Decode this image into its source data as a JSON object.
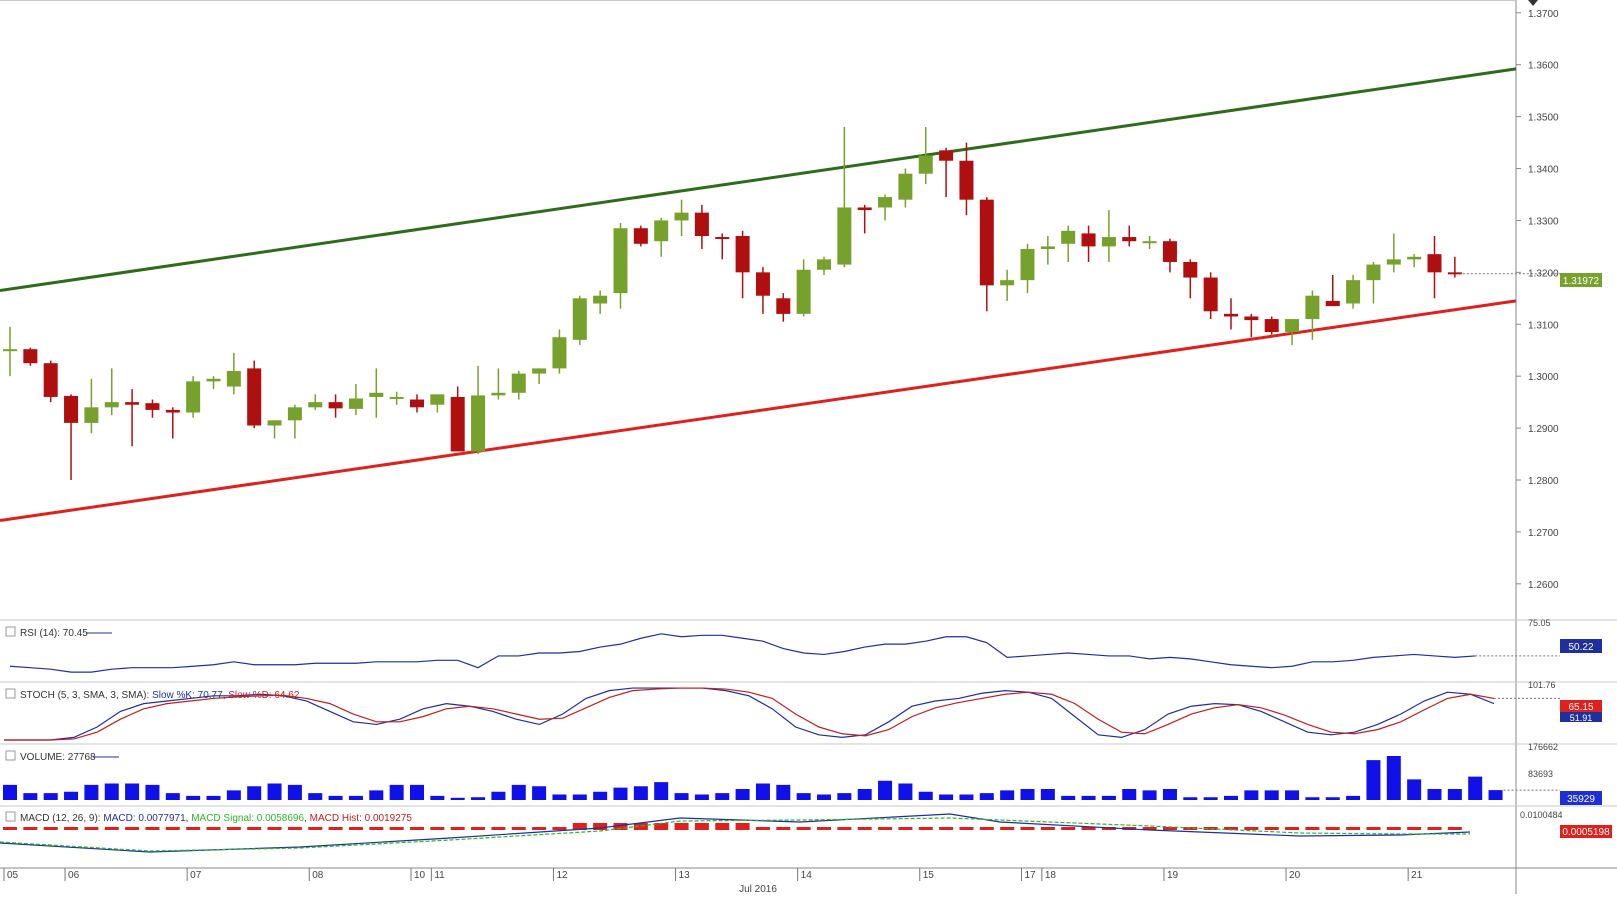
{
  "chart_data": [
    {
      "type": "candlestick",
      "panel": "price",
      "price_axis": {
        "ticks": [
          "1.3700",
          "1.3600",
          "1.3500",
          "1.3400",
          "1.3300",
          "1.3200",
          "1.3100",
          "1.3000",
          "1.2900",
          "1.2800",
          "1.2700",
          "1.2600"
        ],
        "ylim": [
          1.2565,
          1.3715
        ],
        "current_price_label": "1.31972",
        "current_price": 1.31972
      },
      "x_axis": {
        "ticks": [
          "05",
          "06",
          "07",
          "08",
          "10",
          "11",
          "12",
          "13",
          "14",
          "15",
          "17",
          "18",
          "19",
          "20",
          "21"
        ],
        "month_label": "Jul 2016"
      },
      "candles": [
        {
          "o": 1.305,
          "h": 1.3095,
          "l": 1.3,
          "c": 1.3052
        },
        {
          "o": 1.3052,
          "h": 1.3055,
          "l": 1.302,
          "c": 1.3025
        },
        {
          "o": 1.3025,
          "h": 1.303,
          "l": 1.295,
          "c": 1.296
        },
        {
          "o": 1.2962,
          "h": 1.2965,
          "l": 1.28,
          "c": 1.291
        },
        {
          "o": 1.291,
          "h": 1.2995,
          "l": 1.289,
          "c": 1.294
        },
        {
          "o": 1.294,
          "h": 1.3015,
          "l": 1.2925,
          "c": 1.295
        },
        {
          "o": 1.295,
          "h": 1.2975,
          "l": 1.2865,
          "c": 1.2945
        },
        {
          "o": 1.2948,
          "h": 1.2955,
          "l": 1.292,
          "c": 1.2935
        },
        {
          "o": 1.2935,
          "h": 1.294,
          "l": 1.288,
          "c": 1.293
        },
        {
          "o": 1.293,
          "h": 1.3,
          "l": 1.292,
          "c": 1.299
        },
        {
          "o": 1.299,
          "h": 1.3,
          "l": 1.2975,
          "c": 1.2995
        },
        {
          "o": 1.298,
          "h": 1.3045,
          "l": 1.2965,
          "c": 1.301
        },
        {
          "o": 1.3015,
          "h": 1.303,
          "l": 1.29,
          "c": 1.2905
        },
        {
          "o": 1.2905,
          "h": 1.2915,
          "l": 1.288,
          "c": 1.2915
        },
        {
          "o": 1.2915,
          "h": 1.2945,
          "l": 1.288,
          "c": 1.294
        },
        {
          "o": 1.294,
          "h": 1.2965,
          "l": 1.2935,
          "c": 1.295
        },
        {
          "o": 1.295,
          "h": 1.2965,
          "l": 1.292,
          "c": 1.2938
        },
        {
          "o": 1.2937,
          "h": 1.2985,
          "l": 1.2925,
          "c": 1.2957
        },
        {
          "o": 1.296,
          "h": 1.3015,
          "l": 1.292,
          "c": 1.2968
        },
        {
          "o": 1.296,
          "h": 1.297,
          "l": 1.2945,
          "c": 1.296
        },
        {
          "o": 1.2955,
          "h": 1.2965,
          "l": 1.293,
          "c": 1.294
        },
        {
          "o": 1.2945,
          "h": 1.2965,
          "l": 1.293,
          "c": 1.2965
        },
        {
          "o": 1.296,
          "h": 1.298,
          "l": 1.2855,
          "c": 1.2855
        },
        {
          "o": 1.2855,
          "h": 1.302,
          "l": 1.285,
          "c": 1.2963
        },
        {
          "o": 1.2963,
          "h": 1.3015,
          "l": 1.2955,
          "c": 1.2968
        },
        {
          "o": 1.2968,
          "h": 1.301,
          "l": 1.2955,
          "c": 1.3005
        },
        {
          "o": 1.3005,
          "h": 1.3015,
          "l": 1.2985,
          "c": 1.3015
        },
        {
          "o": 1.3015,
          "h": 1.309,
          "l": 1.3005,
          "c": 1.3075
        },
        {
          "o": 1.307,
          "h": 1.3155,
          "l": 1.306,
          "c": 1.315
        },
        {
          "o": 1.314,
          "h": 1.3165,
          "l": 1.312,
          "c": 1.3155
        },
        {
          "o": 1.316,
          "h": 1.3295,
          "l": 1.313,
          "c": 1.3285
        },
        {
          "o": 1.3285,
          "h": 1.329,
          "l": 1.325,
          "c": 1.3255
        },
        {
          "o": 1.326,
          "h": 1.3305,
          "l": 1.323,
          "c": 1.33
        },
        {
          "o": 1.33,
          "h": 1.334,
          "l": 1.327,
          "c": 1.3315
        },
        {
          "o": 1.3315,
          "h": 1.333,
          "l": 1.3245,
          "c": 1.327
        },
        {
          "o": 1.3268,
          "h": 1.3275,
          "l": 1.3225,
          "c": 1.3265
        },
        {
          "o": 1.327,
          "h": 1.328,
          "l": 1.315,
          "c": 1.32
        },
        {
          "o": 1.32,
          "h": 1.321,
          "l": 1.312,
          "c": 1.3155
        },
        {
          "o": 1.315,
          "h": 1.316,
          "l": 1.3105,
          "c": 1.312
        },
        {
          "o": 1.312,
          "h": 1.3225,
          "l": 1.3115,
          "c": 1.3205
        },
        {
          "o": 1.3205,
          "h": 1.323,
          "l": 1.3195,
          "c": 1.3225
        },
        {
          "o": 1.3215,
          "h": 1.348,
          "l": 1.321,
          "c": 1.3325
        },
        {
          "o": 1.3325,
          "h": 1.333,
          "l": 1.3275,
          "c": 1.332
        },
        {
          "o": 1.3325,
          "h": 1.335,
          "l": 1.33,
          "c": 1.3345
        },
        {
          "o": 1.334,
          "h": 1.34,
          "l": 1.3325,
          "c": 1.339
        },
        {
          "o": 1.339,
          "h": 1.348,
          "l": 1.337,
          "c": 1.3425
        },
        {
          "o": 1.3435,
          "h": 1.344,
          "l": 1.3345,
          "c": 1.3415
        },
        {
          "o": 1.3415,
          "h": 1.345,
          "l": 1.331,
          "c": 1.334
        },
        {
          "o": 1.334,
          "h": 1.3345,
          "l": 1.3125,
          "c": 1.3175
        },
        {
          "o": 1.3175,
          "h": 1.3205,
          "l": 1.3145,
          "c": 1.3185
        },
        {
          "o": 1.3185,
          "h": 1.3255,
          "l": 1.316,
          "c": 1.3245
        },
        {
          "o": 1.3245,
          "h": 1.327,
          "l": 1.3215,
          "c": 1.325
        },
        {
          "o": 1.3255,
          "h": 1.329,
          "l": 1.322,
          "c": 1.328
        },
        {
          "o": 1.3275,
          "h": 1.329,
          "l": 1.322,
          "c": 1.325
        },
        {
          "o": 1.325,
          "h": 1.332,
          "l": 1.322,
          "c": 1.3268
        },
        {
          "o": 1.3268,
          "h": 1.329,
          "l": 1.325,
          "c": 1.326
        },
        {
          "o": 1.326,
          "h": 1.327,
          "l": 1.3245,
          "c": 1.326
        },
        {
          "o": 1.326,
          "h": 1.3265,
          "l": 1.32,
          "c": 1.322
        },
        {
          "o": 1.322,
          "h": 1.3225,
          "l": 1.315,
          "c": 1.319
        },
        {
          "o": 1.319,
          "h": 1.32,
          "l": 1.311,
          "c": 1.3125
        },
        {
          "o": 1.312,
          "h": 1.315,
          "l": 1.309,
          "c": 1.3115
        },
        {
          "o": 1.3115,
          "h": 1.312,
          "l": 1.3075,
          "c": 1.3108
        },
        {
          "o": 1.311,
          "h": 1.3115,
          "l": 1.308,
          "c": 1.3085
        },
        {
          "o": 1.3085,
          "h": 1.311,
          "l": 1.306,
          "c": 1.311
        },
        {
          "o": 1.311,
          "h": 1.3165,
          "l": 1.307,
          "c": 1.3155
        },
        {
          "o": 1.3145,
          "h": 1.3195,
          "l": 1.3135,
          "c": 1.3135
        },
        {
          "o": 1.314,
          "h": 1.3195,
          "l": 1.313,
          "c": 1.3185
        },
        {
          "o": 1.3185,
          "h": 1.322,
          "l": 1.314,
          "c": 1.3215
        },
        {
          "o": 1.3215,
          "h": 1.3275,
          "l": 1.32,
          "c": 1.3225
        },
        {
          "o": 1.3225,
          "h": 1.3235,
          "l": 1.321,
          "c": 1.323
        },
        {
          "o": 1.3235,
          "h": 1.327,
          "l": 1.315,
          "c": 1.32
        },
        {
          "o": 1.32,
          "h": 1.323,
          "l": 1.319,
          "c": 1.3197
        }
      ],
      "trendlines": [
        {
          "name": "resistance",
          "color": "#2e6b1a",
          "y_start": 1.3165,
          "y_end": 1.3592
        },
        {
          "name": "support",
          "color": "#e0201c",
          "y_start": 1.2722,
          "y_end": 1.3145
        }
      ],
      "colors": {
        "up": "#77a12d",
        "down": "#b00f0f"
      }
    },
    {
      "type": "line",
      "panel": "rsi",
      "label": "RSI (14): 70.45",
      "axis_ticks": [
        "75.05"
      ],
      "last_value_label": "50.22",
      "ylim": [
        40,
        76
      ],
      "values": [
        48,
        47,
        46,
        44,
        44,
        46,
        47,
        47,
        47,
        48,
        49,
        51,
        49,
        49,
        49,
        50,
        50,
        50,
        51,
        51,
        51,
        52,
        52,
        47,
        55,
        55,
        57,
        57,
        58,
        61,
        63,
        67,
        70,
        68,
        69,
        69,
        67,
        65,
        60,
        57,
        56,
        58,
        61,
        63,
        63,
        65,
        68,
        68,
        64,
        54,
        55,
        56,
        57,
        56,
        55,
        55,
        53,
        54,
        53,
        51,
        49,
        48,
        47,
        48,
        51,
        51,
        52,
        54,
        55,
        56,
        55,
        54,
        55
      ],
      "color": "#1f2f9c"
    },
    {
      "type": "line",
      "panel": "stochastic",
      "label_prefix": "STOCH (5, 3, SMA, 3, SMA): ",
      "k_label": "Slow  %K: 70.77",
      "d_label": "Slow  %D: 64.62",
      "axis_ticks": [
        "101.76"
      ],
      "value_labels": [
        "65.15",
        "51.91"
      ],
      "ylim": [
        0,
        102
      ],
      "series": [
        {
          "name": "Slow  %K",
          "color": "#1f2f9c",
          "values": [
            0,
            0,
            0,
            5,
            25,
            55,
            70,
            75,
            80,
            85,
            85,
            88,
            85,
            75,
            55,
            35,
            30,
            40,
            60,
            70,
            65,
            55,
            40,
            30,
            50,
            80,
            95,
            100,
            100,
            100,
            100,
            95,
            85,
            60,
            25,
            10,
            5,
            10,
            35,
            65,
            75,
            80,
            90,
            95,
            92,
            80,
            45,
            10,
            5,
            20,
            50,
            65,
            70,
            68,
            55,
            35,
            15,
            10,
            15,
            30,
            50,
            75,
            92,
            88,
            70
          ]
        },
        {
          "name": "Slow  %D",
          "color": "#c02020",
          "values": [
            0,
            0,
            0,
            2,
            15,
            40,
            60,
            70,
            75,
            80,
            83,
            85,
            86,
            80,
            70,
            50,
            35,
            35,
            45,
            60,
            65,
            60,
            50,
            40,
            42,
            62,
            82,
            95,
            98,
            100,
            100,
            98,
            92,
            80,
            50,
            25,
            12,
            8,
            20,
            45,
            62,
            72,
            80,
            88,
            92,
            88,
            70,
            40,
            15,
            12,
            30,
            50,
            62,
            68,
            62,
            48,
            30,
            15,
            12,
            20,
            35,
            58,
            80,
            88,
            80
          ]
        }
      ]
    },
    {
      "type": "bar",
      "panel": "volume",
      "label": "VOLUME: 27768",
      "axis_ticks": [
        "176662",
        "83693"
      ],
      "last_value_label": "35929",
      "ylim": [
        0,
        200000
      ],
      "values": [
        55000,
        25000,
        25000,
        30000,
        55000,
        60000,
        60000,
        55000,
        25000,
        15000,
        15000,
        35000,
        50000,
        60000,
        55000,
        25000,
        15000,
        15000,
        35000,
        55000,
        55000,
        15000,
        8000,
        10000,
        30000,
        55000,
        50000,
        20000,
        20000,
        30000,
        45000,
        50000,
        65000,
        25000,
        20000,
        25000,
        40000,
        60000,
        55000,
        25000,
        20000,
        25000,
        40000,
        70000,
        60000,
        30000,
        20000,
        20000,
        25000,
        35000,
        40000,
        40000,
        15000,
        15000,
        15000,
        40000,
        35000,
        40000,
        10000,
        10000,
        15000,
        35000,
        35000,
        35000,
        10000,
        10000,
        15000,
        145000,
        160000,
        75000,
        40000,
        40000,
        85000,
        35929
      ]
    },
    {
      "type": "area",
      "panel": "macd",
      "label_prefix": "MACD (12, 26, 9): ",
      "macd_label": "MACD: 0.0077971",
      "signal_label": "MACD Signal: 0.0058696",
      "hist_label": "MACD Hist: 0.0019275",
      "axis_ticks": [
        "0.0100484"
      ],
      "last_value_label": "0.0005198",
      "colors": {
        "macd": "#1f2f9c",
        "signal": "#2db52d",
        "hist": "#e0201c"
      }
    }
  ]
}
